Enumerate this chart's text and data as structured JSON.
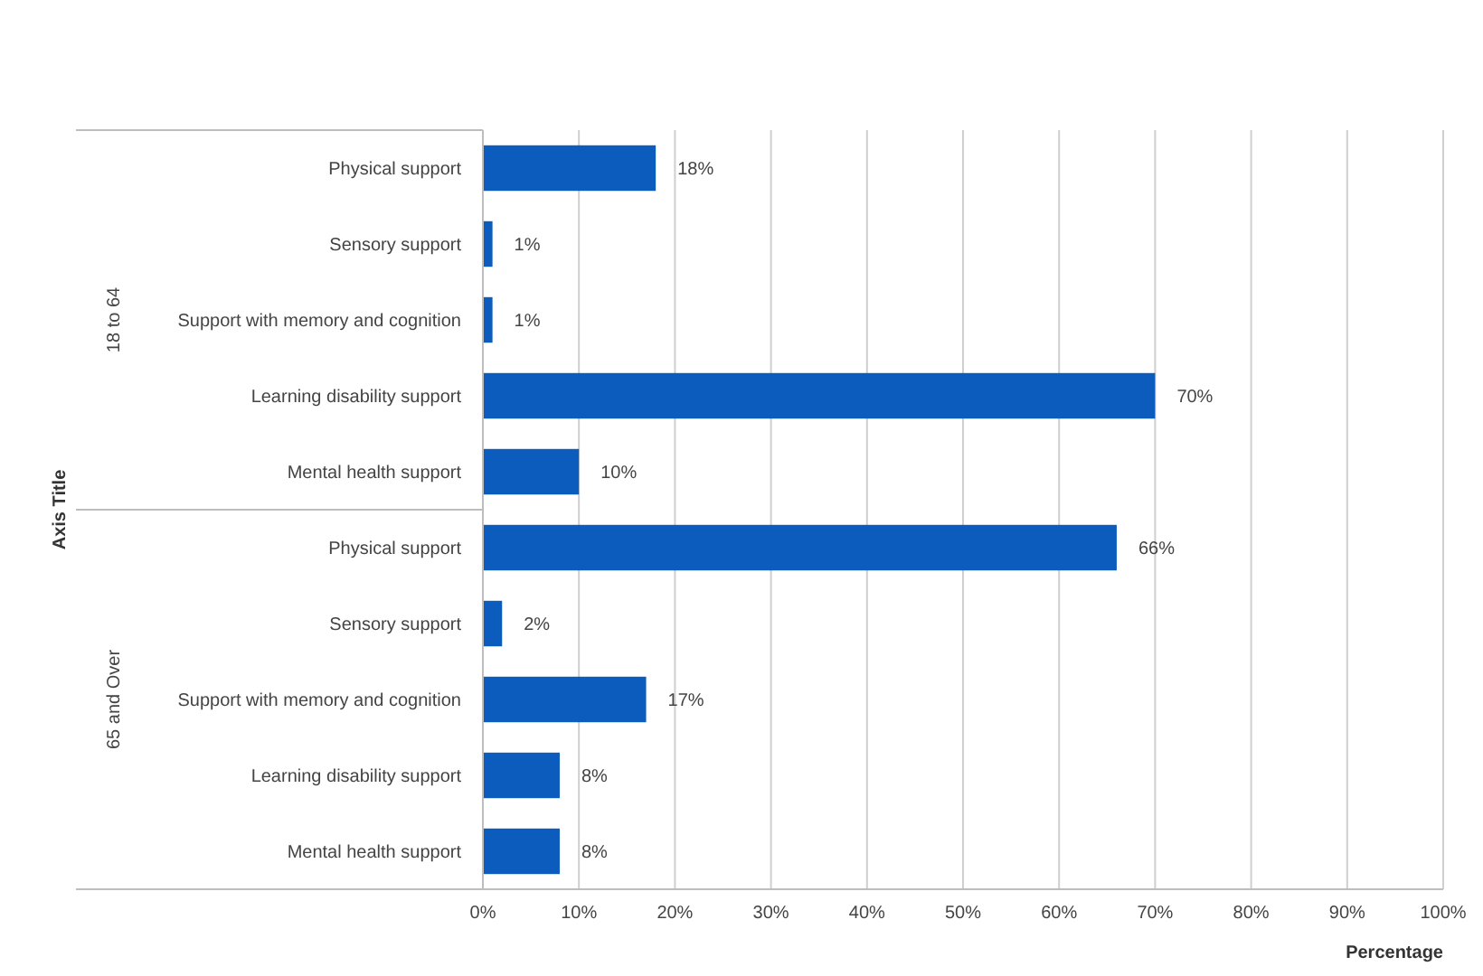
{
  "chart_data": {
    "type": "bar",
    "orientation": "horizontal",
    "xlabel": "Percentage",
    "categories": [
      "Physical support",
      "Sensory support",
      "Support with memory and cognition",
      "Learning disability support",
      "Mental health support",
      "Physical support",
      "Sensory support",
      "Support with memory and cognition",
      "Learning disability support",
      "Mental health support"
    ],
    "values": [
      18,
      1,
      1,
      70,
      10,
      66,
      2,
      17,
      8,
      8
    ],
    "value_labels": [
      "18%",
      "1%",
      "1%",
      "70%",
      "10%",
      "66%",
      "2%",
      "17%",
      "8%",
      "8%"
    ],
    "color": "#0b5cbd",
    "annotations": [
      "Axis Title",
      "18 to 64",
      "65 and Over"
    ],
    "xlim": [
      0,
      100
    ],
    "xticks": [
      {
        "value": 0,
        "label": "0%"
      },
      {
        "value": 10,
        "label": "10%"
      },
      {
        "value": 20,
        "label": "20%"
      },
      {
        "value": 30,
        "label": "30%"
      },
      {
        "value": 40,
        "label": "40%"
      },
      {
        "value": 50,
        "label": "50%"
      },
      {
        "value": 60,
        "label": "60%"
      },
      {
        "value": 70,
        "label": "70%"
      },
      {
        "value": 80,
        "label": "80%"
      },
      {
        "value": 90,
        "label": "90%"
      },
      {
        "value": 100,
        "label": "100%"
      }
    ],
    "grid": "x"
  }
}
